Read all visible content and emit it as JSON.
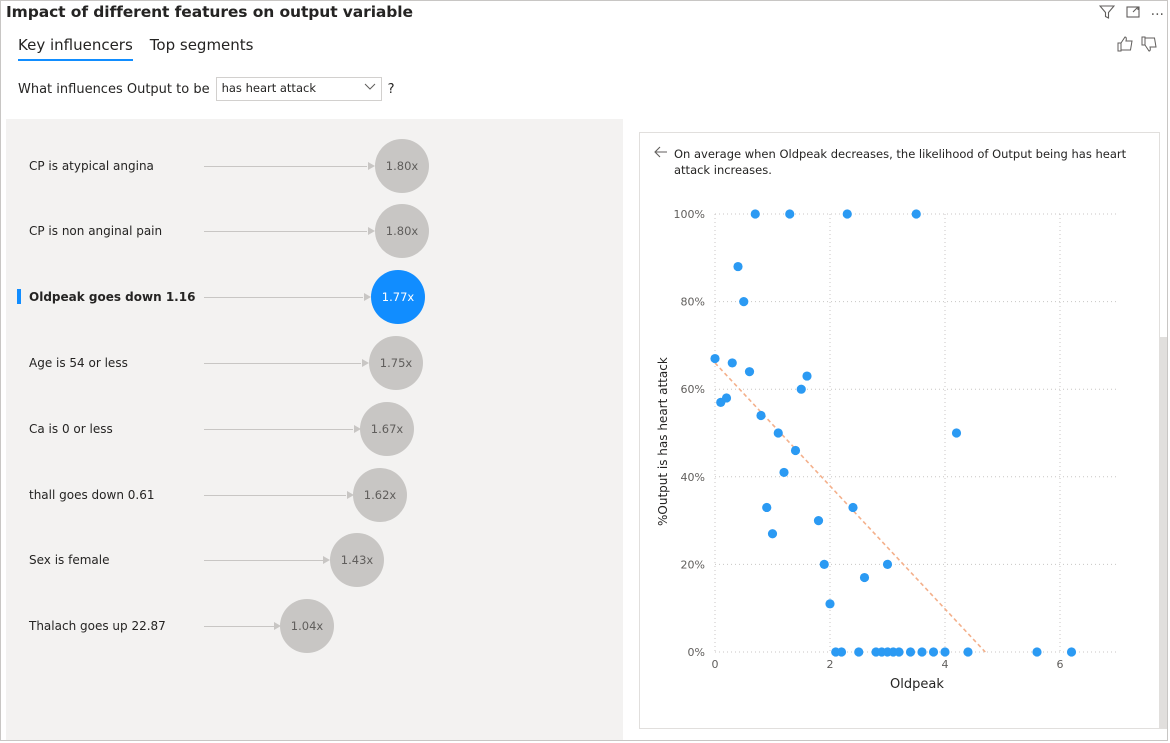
{
  "title": "Impact of different features on output variable",
  "toolbar": {
    "filter_icon": "filter-icon",
    "focus_icon": "focus-mode-icon",
    "more_label": "···"
  },
  "tabs": [
    {
      "label": "Key influencers",
      "active": true
    },
    {
      "label": "Top segments",
      "active": false
    }
  ],
  "question": {
    "prefix": "What influences Output to be",
    "selected_value": "has heart attack",
    "suffix": "?"
  },
  "influencers": [
    {
      "label": "CP is atypical angina",
      "value": "1.80x",
      "factor": 1.8,
      "selected": false
    },
    {
      "label": "CP is non anginal pain",
      "value": "1.80x",
      "factor": 1.8,
      "selected": false
    },
    {
      "label": "Oldpeak goes down 1.16",
      "value": "1.77x",
      "factor": 1.77,
      "selected": true
    },
    {
      "label": "Age is 54 or less",
      "value": "1.75x",
      "factor": 1.75,
      "selected": false
    },
    {
      "label": "Ca is 0 or less",
      "value": "1.67x",
      "factor": 1.67,
      "selected": false
    },
    {
      "label": "thall goes down 0.61",
      "value": "1.62x",
      "factor": 1.62,
      "selected": false
    },
    {
      "label": "Sex is female",
      "value": "1.43x",
      "factor": 1.43,
      "selected": false
    },
    {
      "label": "Thalach goes up 22.87",
      "value": "1.04x",
      "factor": 1.04,
      "selected": false
    }
  ],
  "detail": {
    "explanation": "On average when Oldpeak decreases, the likelihood of Output being has heart attack increases."
  },
  "chart_data": {
    "type": "scatter",
    "xlabel": "Oldpeak",
    "ylabel": "%Output is has heart attack",
    "xlim": [
      0,
      7
    ],
    "ylim": [
      0,
      100
    ],
    "xticks": [
      "0",
      "2",
      "4",
      "6"
    ],
    "yticks": [
      "0%",
      "20%",
      "40%",
      "60%",
      "80%",
      "100%"
    ],
    "grid": true,
    "point_color": "#2b9af3",
    "trend_color": "#f4b08b",
    "points": [
      [
        0.0,
        67
      ],
      [
        0.1,
        57
      ],
      [
        0.2,
        58
      ],
      [
        0.3,
        66
      ],
      [
        0.4,
        88
      ],
      [
        0.5,
        80
      ],
      [
        0.6,
        64
      ],
      [
        0.7,
        100
      ],
      [
        0.8,
        54
      ],
      [
        0.9,
        33
      ],
      [
        1.0,
        27
      ],
      [
        1.1,
        50
      ],
      [
        1.2,
        41
      ],
      [
        1.3,
        100
      ],
      [
        1.4,
        46
      ],
      [
        1.5,
        60
      ],
      [
        1.6,
        63
      ],
      [
        1.8,
        30
      ],
      [
        1.9,
        20
      ],
      [
        2.0,
        11
      ],
      [
        2.1,
        0
      ],
      [
        2.2,
        0
      ],
      [
        2.3,
        100
      ],
      [
        2.4,
        33
      ],
      [
        2.5,
        0
      ],
      [
        2.6,
        17
      ],
      [
        2.8,
        0
      ],
      [
        2.9,
        0
      ],
      [
        3.0,
        20
      ],
      [
        3.0,
        0
      ],
      [
        3.1,
        0
      ],
      [
        3.2,
        0
      ],
      [
        3.4,
        0
      ],
      [
        3.5,
        100
      ],
      [
        3.6,
        0
      ],
      [
        3.8,
        0
      ],
      [
        4.0,
        0
      ],
      [
        4.2,
        50
      ],
      [
        4.4,
        0
      ],
      [
        5.6,
        0
      ],
      [
        6.2,
        0
      ]
    ],
    "trend": {
      "x0": 0.0,
      "y0": 66,
      "x1": 4.7,
      "y1": 0
    }
  }
}
